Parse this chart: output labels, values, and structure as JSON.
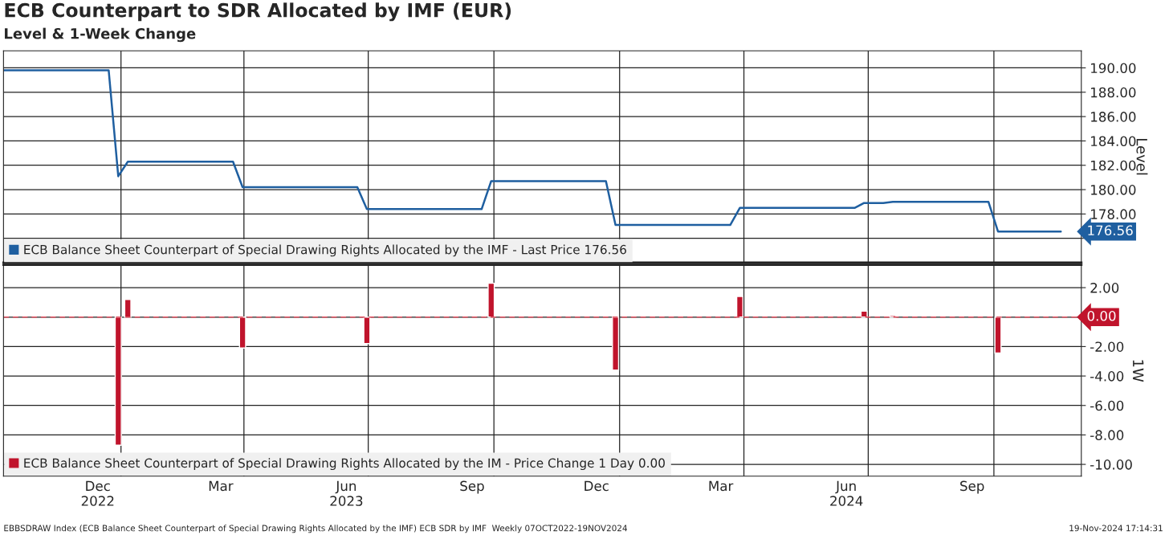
{
  "chart_data": [
    {
      "type": "line",
      "title": "ECB Counterpart to SDR Allocated by IMF (EUR)",
      "subtitle": "Level & 1-Week Change",
      "ylabel": "Level",
      "series": [
        {
          "name": "ECB Balance Sheet Counterpart of Special Drawing Rights Allocated by the IMF - Last Price 176.56",
          "color": "#1f5fa0",
          "x": [
            "2022-10-07",
            "2022-12-23",
            "2022-12-30",
            "2023-01-06",
            "2023-03-24",
            "2023-03-31",
            "2023-06-23",
            "2023-06-30",
            "2023-09-22",
            "2023-09-29",
            "2023-12-22",
            "2023-12-29",
            "2024-03-22",
            "2024-03-29",
            "2024-06-21",
            "2024-06-28",
            "2024-07-12",
            "2024-07-19",
            "2024-09-27",
            "2024-10-04",
            "2024-11-19"
          ],
          "values": [
            189.8,
            189.8,
            181.1,
            182.3,
            182.3,
            180.2,
            180.2,
            178.4,
            178.4,
            180.7,
            180.7,
            177.1,
            177.1,
            178.5,
            178.5,
            178.9,
            178.9,
            179.0,
            179.0,
            176.56,
            176.56
          ]
        }
      ],
      "xlim": [
        "2022-10-07",
        "2024-12-04"
      ],
      "ylim": [
        174.0,
        191.4
      ],
      "yticks": [
        {
          "value": 176,
          "label": null
        },
        {
          "value": 178,
          "label": "178.00"
        },
        {
          "value": 180,
          "label": "180.00"
        },
        {
          "value": 182,
          "label": "182.00"
        },
        {
          "value": 184,
          "label": "184.00"
        },
        {
          "value": 186,
          "label": "186.00"
        },
        {
          "value": 188,
          "label": "188.00"
        },
        {
          "value": 190,
          "label": "190.00"
        }
      ],
      "xticks": [
        {
          "value": "2023-01-01",
          "label": null
        },
        {
          "value": "2023-04-01",
          "label": null
        },
        {
          "value": "2023-07-01",
          "label": null
        },
        {
          "value": "2023-10-01",
          "label": null
        },
        {
          "value": "2024-01-01",
          "label": null
        },
        {
          "value": "2024-04-01",
          "label": null
        },
        {
          "value": "2024-07-01",
          "label": null
        },
        {
          "value": "2024-10-01",
          "label": null
        }
      ],
      "tick_labels": "y",
      "grid": true,
      "legend": "bottom left",
      "annotations": [
        {
          "text": "176.56",
          "x": "2024-11-19",
          "y": 176.56
        }
      ]
    },
    {
      "type": "bar",
      "ylabel": "1W",
      "series": [
        {
          "name": "ECB Balance Sheet Counterpart of Special Drawing Rights Allocated by the IM - Price Change 1 Day 0.00",
          "color": "#c0142c",
          "x": [
            "2022-12-30",
            "2023-01-06",
            "2023-03-31",
            "2023-06-30",
            "2023-09-29",
            "2023-12-29",
            "2024-03-29",
            "2024-06-28",
            "2024-07-19",
            "2024-10-04"
          ],
          "values": [
            -8.7,
            1.2,
            -2.1,
            -1.8,
            2.3,
            -3.6,
            1.4,
            0.4,
            0.1,
            -2.44
          ]
        }
      ],
      "xlim": [
        "2022-10-07",
        "2024-12-04"
      ],
      "ylim": [
        -10.8,
        3.55
      ],
      "yticks": [
        {
          "value": -10,
          "label": "-10.00"
        },
        {
          "value": -8,
          "label": "-8.00"
        },
        {
          "value": -6,
          "label": "-6.00"
        },
        {
          "value": -4,
          "label": "-4.00"
        },
        {
          "value": -2,
          "label": "-2.00"
        },
        {
          "value": 0,
          "label": null
        },
        {
          "value": 2,
          "label": "2.00"
        }
      ],
      "xticks": [
        {
          "value": "2022-12-15",
          "label": "Dec\n2022"
        },
        {
          "value": "2023-01-01",
          "label": null
        },
        {
          "value": "2023-03-15",
          "label": "Mar"
        },
        {
          "value": "2023-04-01",
          "label": null
        },
        {
          "value": "2023-06-15",
          "label": "Jun\n2023"
        },
        {
          "value": "2023-07-01",
          "label": null
        },
        {
          "value": "2023-09-15",
          "label": "Sep"
        },
        {
          "value": "2023-10-01",
          "label": null
        },
        {
          "value": "2023-12-15",
          "label": "Dec"
        },
        {
          "value": "2024-01-01",
          "label": null
        },
        {
          "value": "2024-03-15",
          "label": "Mar"
        },
        {
          "value": "2024-04-01",
          "label": null
        },
        {
          "value": "2024-06-15",
          "label": "Jun\n2024"
        },
        {
          "value": "2024-07-01",
          "label": null
        },
        {
          "value": "2024-09-15",
          "label": "Sep"
        },
        {
          "value": "2024-10-01",
          "label": null
        }
      ],
      "grid": true,
      "legend": "bottom left",
      "ref_lines": [
        {
          "axis": "y",
          "value": 0,
          "color": "#e05060",
          "line_style": "dashed"
        }
      ],
      "annotations": [
        {
          "text": "0.00",
          "x": "2024-11-19",
          "y": 0
        },
        "EBBSDRAW Index (ECB Balance Sheet Counterpart of Special Drawing Rights Allocated by the IMF) ECB SDR by IMF  Weekly 07OCT2022-19NOV2024",
        "19-Nov-2024 17:14:31"
      ]
    }
  ]
}
